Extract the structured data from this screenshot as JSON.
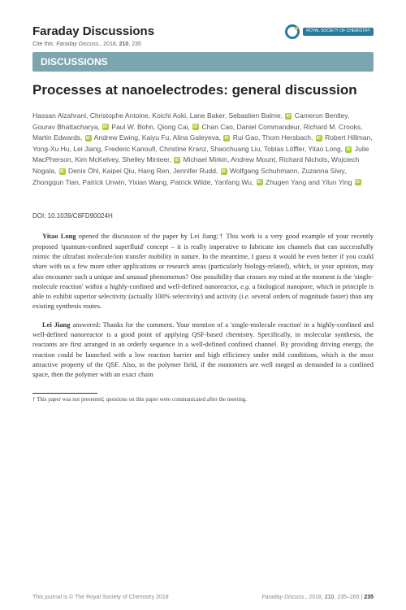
{
  "header": {
    "journal": "Faraday Discussions",
    "rsc_label": "ROYAL SOCIETY\nOF CHEMISTRY",
    "cite_prefix": "Cite this: ",
    "cite_journal": "Faraday Discuss., ",
    "cite_rest": "2018, ",
    "cite_vol": "210",
    "cite_page": ", 235"
  },
  "section_bar": "DISCUSSIONS",
  "title": "Processes at nanoelectrodes: general discussion",
  "authors_html": "Hassan Alzahrani, Christophe Antoine, Koichi Aoki, Lane Baker, Sebastien Balme,  <ORCID> Cameron Bentley, Gourav Bhattacharya, <ORCID> Paul W. Bohn, Qiong Cai, <ORCID> Chan Cao, Daniel Commandeur, Richard M. Crooks, Martin Edwards, <ORCID> Andrew Ewing, Kaiyu Fu, Alina Galeyeva, <ORCID> Rui Gao, Thom Hersbach, <ORCID> Robert Hillman, Yong-Xu Hu, Lei Jiang, Frederic Kanoufi, Christine Kranz, Shaochuang Liu, Tobias Löffler, Yitao Long, <ORCID> Julie MacPherson, Kim McKelvey, Shelley Minteer, <ORCID> Michael Mirkin, Andrew Mount, Richard Nichols, Wojciech Nogala, <ORCID> Denis Öhl, Kaipei Qiu, Hang Ren, Jennifer Rudd, <ORCID> Wolfgang Schuhmann, Zuzanna Siwy, Zhongqun Tian, Patrick Unwin, Yixian Wang, Patrick Wilde, Yanfang Wu, <ORCID> Zhugen Yang and Yilun Ying <ORCID>",
  "doi": "DOI: 10.1039/C8FD90024H",
  "paragraphs": [
    {
      "speaker": "Yitao Long",
      "text": " opened the discussion of the paper by Lei Jiang:† This work is a very good example of your recently proposed 'quantum-confined superfluid' concept – it is really imperative to fabricate ion channels that can successfully mimic the ultrafast molecule/ion transfer mobility in nature. In the meantime, I guess it would be even better if you could share with us a few more other applications or research areas (particularly biology-related), which, in your opinion, may also encounter such a unique and unusual phenomenon? One possibility that crosses my mind at the moment is the 'single-molecule reaction' within a highly-confined and well-defined nanoreactor, ",
      "italic1": "e.g.",
      "text2": " a biological nanopore, which in principle is able to exhibit superior selectivity (actually 100% selectivity) and activity (",
      "italic2": "i.e.",
      "text3": " several orders of magnitude faster) than any existing synthesis routes."
    },
    {
      "speaker": "Lei Jiang",
      "text": " answered: Thanks for the comment. Your mention of a 'single-molecule reaction' in a highly-confined and well-defined nanoreactor is a good point of applying QSF-based chemistry. Specifically, in molecular synthesis, the reactants are first arranged in an orderly sequence in a well-defined confined channel. By providing driving energy, the reaction could be launched with a low reaction barrier and high efficiency under mild conditions, which is the most attractive property of the QSF. Also, in the polymer field, if the monomers are well ranged as demanded in a confined space, then the polymer with an exact chain"
    }
  ],
  "footnote": "† This paper was not presented; questions on this paper were communicated after the meeting.",
  "footer": {
    "left": "This journal is © The Royal Society of Chemistry 2018",
    "right_journal": "Faraday Discuss., ",
    "right_year": "2018, ",
    "right_vol": "210",
    "right_pages": ", 235–265 | ",
    "pagenum": "235"
  },
  "colors": {
    "bar_bg": "#7ba5b0",
    "orcid": "#a6ce39",
    "rsc": "#2a7a9a"
  }
}
